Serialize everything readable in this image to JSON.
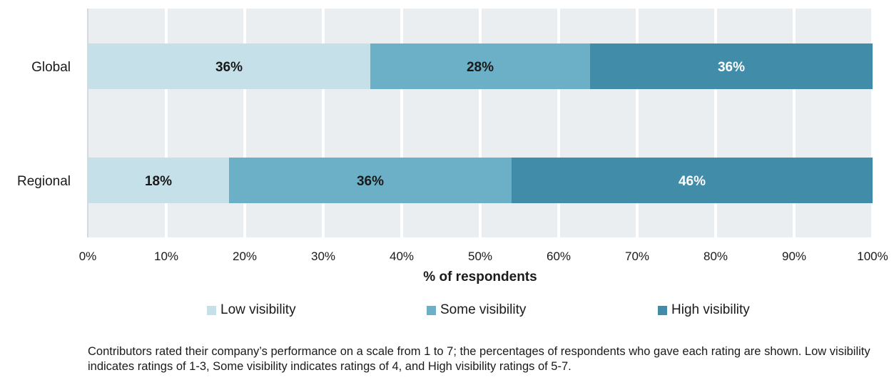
{
  "chart_data": {
    "type": "bar",
    "orientation": "horizontal",
    "stacked": true,
    "categories": [
      "Global",
      "Regional"
    ],
    "series": [
      {
        "name": "Low visibility",
        "values": [
          36,
          18
        ],
        "color": "#c5e0e8",
        "label_color": "#1a1a1a"
      },
      {
        "name": "Some visibility",
        "values": [
          28,
          36
        ],
        "color": "#6cb0c7",
        "label_color": "#1a1a1a"
      },
      {
        "name": "High visibility",
        "values": [
          36,
          46
        ],
        "color": "#418ca8",
        "label_color": "#ffffff"
      }
    ],
    "data_label_suffix": "%",
    "xlim": [
      0,
      100
    ],
    "xticks": [
      0,
      10,
      20,
      30,
      40,
      50,
      60,
      70,
      80,
      90,
      100
    ],
    "xtick_suffix": "%",
    "xlabel": "% of respondents",
    "ylabel": "",
    "grid": true,
    "legend_position": "bottom",
    "plot_background": "#ebeef1",
    "grid_color": "#ffffff"
  },
  "footnote": "Contributors rated their company’s performance on a scale from 1 to 7; the percentages of respondents who gave each rating are shown. Low visibility indicates ratings of 1-3, Some visibility indicates ratings of 4, and High visibility ratings of 5-7."
}
